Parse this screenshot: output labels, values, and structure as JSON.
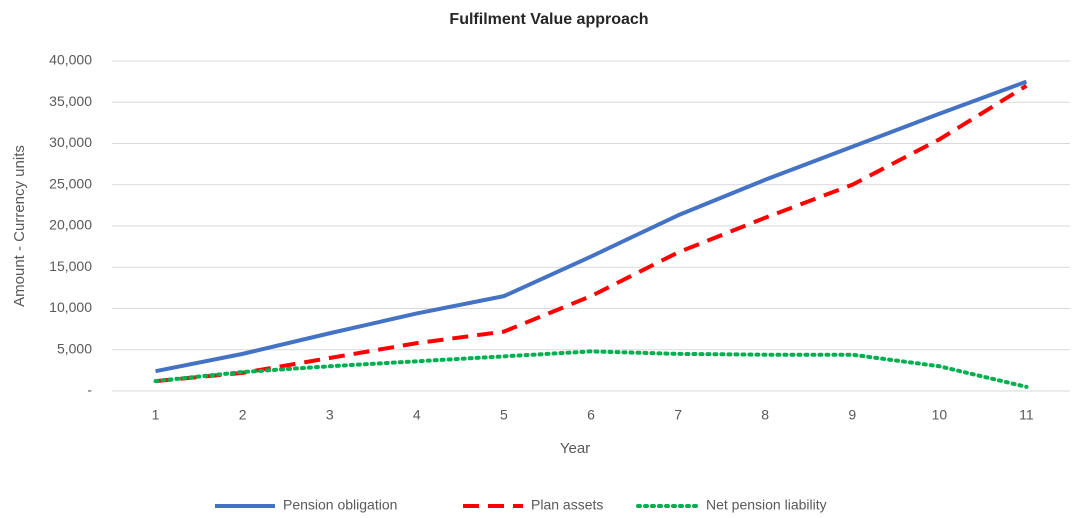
{
  "chart_data": {
    "type": "line",
    "title": "Fulfilment Value approach",
    "x_label": "Year",
    "y_label": "Amount - Currency units",
    "categories": [
      "1",
      "2",
      "3",
      "4",
      "5",
      "6",
      "7",
      "8",
      "9",
      "10",
      "11"
    ],
    "series": [
      {
        "name": "Pension obligation",
        "color": "#4472c4",
        "dash": "solid",
        "values": [
          2400,
          4500,
          7000,
          9400,
          11500,
          16300,
          21300,
          25600,
          29600,
          33600,
          37500
        ]
      },
      {
        "name": "Plan assets",
        "color": "#ff0000",
        "dash": "dashed",
        "values": [
          1200,
          2200,
          4000,
          5800,
          7200,
          11500,
          16800,
          21000,
          25000,
          30500,
          37000
        ]
      },
      {
        "name": "Net pension liability",
        "color": "#00b050",
        "dash": "dotted",
        "values": [
          1200,
          2300,
          3000,
          3600,
          4200,
          4800,
          4500,
          4400,
          4400,
          3000,
          500
        ]
      }
    ],
    "ylim": [
      0,
      40000
    ],
    "yticks": [
      {
        "value": 0,
        "label": "-"
      },
      {
        "value": 5000,
        "label": "5,000"
      },
      {
        "value": 10000,
        "label": "10,000"
      },
      {
        "value": 15000,
        "label": "15,000"
      },
      {
        "value": 20000,
        "label": "20,000"
      },
      {
        "value": 25000,
        "label": "25,000"
      },
      {
        "value": 30000,
        "label": "30,000"
      },
      {
        "value": 35000,
        "label": "35,000"
      },
      {
        "value": 40000,
        "label": "40,000"
      }
    ],
    "grid": true,
    "legend": "bottom"
  }
}
